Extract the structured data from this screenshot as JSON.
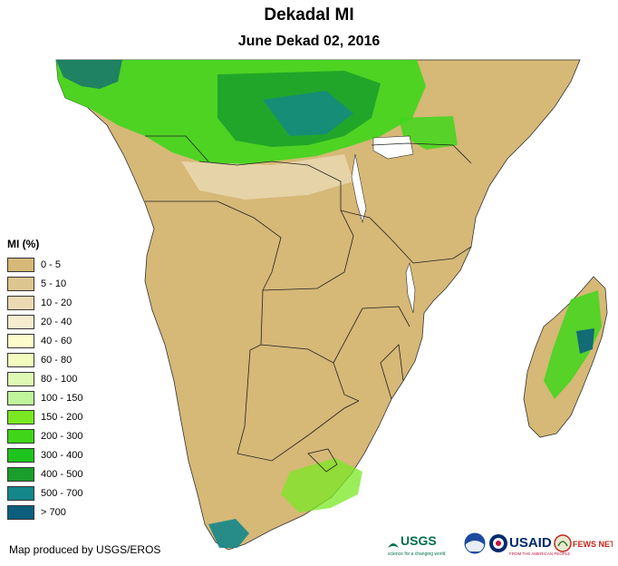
{
  "header": {
    "title": "Dekadal MI",
    "subtitle": "June Dekad 02, 2016"
  },
  "legend": {
    "title": "MI (%)",
    "items": [
      {
        "label": "0 - 5",
        "color": "#d6b877"
      },
      {
        "label": "5 - 10",
        "color": "#ddc58e"
      },
      {
        "label": "10 - 20",
        "color": "#ead9b3"
      },
      {
        "label": "20 - 40",
        "color": "#f6ecd0"
      },
      {
        "label": "40 - 60",
        "color": "#fdfdcc"
      },
      {
        "label": "60 - 80",
        "color": "#f3fbbf"
      },
      {
        "label": "80 - 100",
        "color": "#dff9b4"
      },
      {
        "label": "100 - 150",
        "color": "#bff59b"
      },
      {
        "label": "150 - 200",
        "color": "#7ae823"
      },
      {
        "label": "200 - 300",
        "color": "#3fd61a"
      },
      {
        "label": "300 - 400",
        "color": "#1ec41e"
      },
      {
        "label": "400 - 500",
        "color": "#1a9e2c"
      },
      {
        "label": "500 - 700",
        "color": "#14878a"
      },
      {
        "label": "> 700",
        "color": "#0b5f7d"
      }
    ]
  },
  "footer": {
    "credit": "Map produced by USGS/EROS"
  },
  "logos": {
    "usgs": "USGS",
    "usgs_tagline": "science for a changing world",
    "usaid": "USAID",
    "usaid_tagline": "FROM THE AMERICAN PEOPLE",
    "fewsnet": "FEWS NET",
    "icons": [
      "usgs-logo-icon",
      "noaa-logo-icon",
      "usaid-logo-icon",
      "fewsnet-logo-icon"
    ]
  }
}
